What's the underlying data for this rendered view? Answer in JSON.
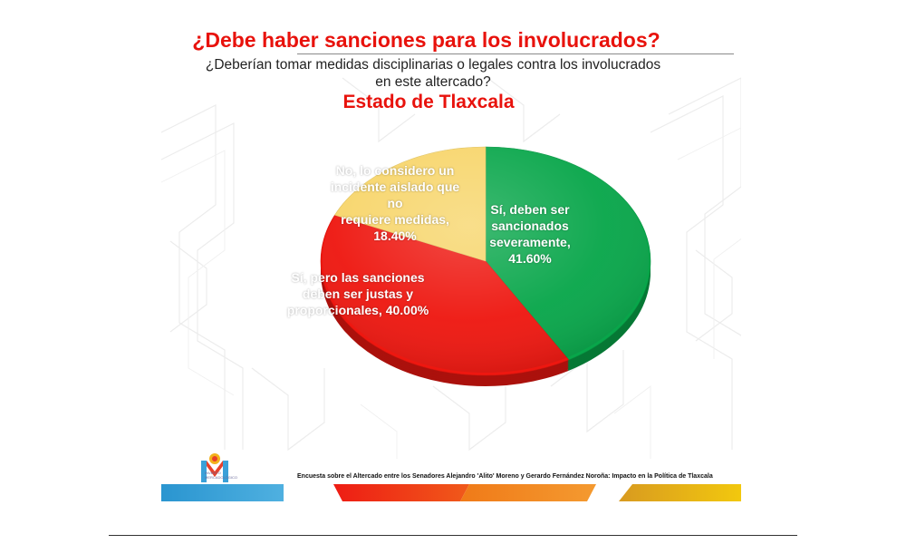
{
  "slide": {
    "title": "¿Debe haber sanciones para los involucrados?",
    "subtitle_line1": "¿Deberían tomar medidas disciplinarias o legales contra los involucrados",
    "subtitle_line2": "en este altercado?",
    "region": "Estado de Tlaxcala",
    "footer_note": "Encuesta sobre el Altercado entre los Senadores Alejandro 'Alito' Moreno y Gerardo Fernández Noroña: Impacto en la Política de Tlaxcala",
    "logo_text_line1": "INVENTO",
    "logo_text_line2": "MERCADOLÓGICO"
  },
  "colors": {
    "green": "#08a64a",
    "red": "#ee1710",
    "yellow": "#f7d56a",
    "title_red": "#e8120c",
    "footer_blue": "#2a95d0",
    "footer_orange": "#f07a18",
    "footer_gold": "#e8b020"
  },
  "chart_data": {
    "type": "pie",
    "slices": [
      {
        "label": "Sí, deben ser sancionados severamente",
        "value": 41.6,
        "label_lines": [
          "Sí, deben ser",
          "sancionados",
          "severamente,",
          "41.60%"
        ],
        "color": "#08a64a"
      },
      {
        "label": "Sí, pero las sanciones deben ser justas y proporcionales",
        "value": 40.0,
        "label_lines": [
          "Sí, pero las sanciones",
          "deben ser justas y",
          "proporcionales, 40.00%"
        ],
        "color": "#ee1710"
      },
      {
        "label": "No, lo considero un incidente aislado que no requiere medidas",
        "value": 18.4,
        "label_lines": [
          "No, lo considero un",
          "incidente aislado que no",
          "requiere medidas,",
          "18.40%"
        ],
        "color": "#f7d56a"
      }
    ]
  }
}
